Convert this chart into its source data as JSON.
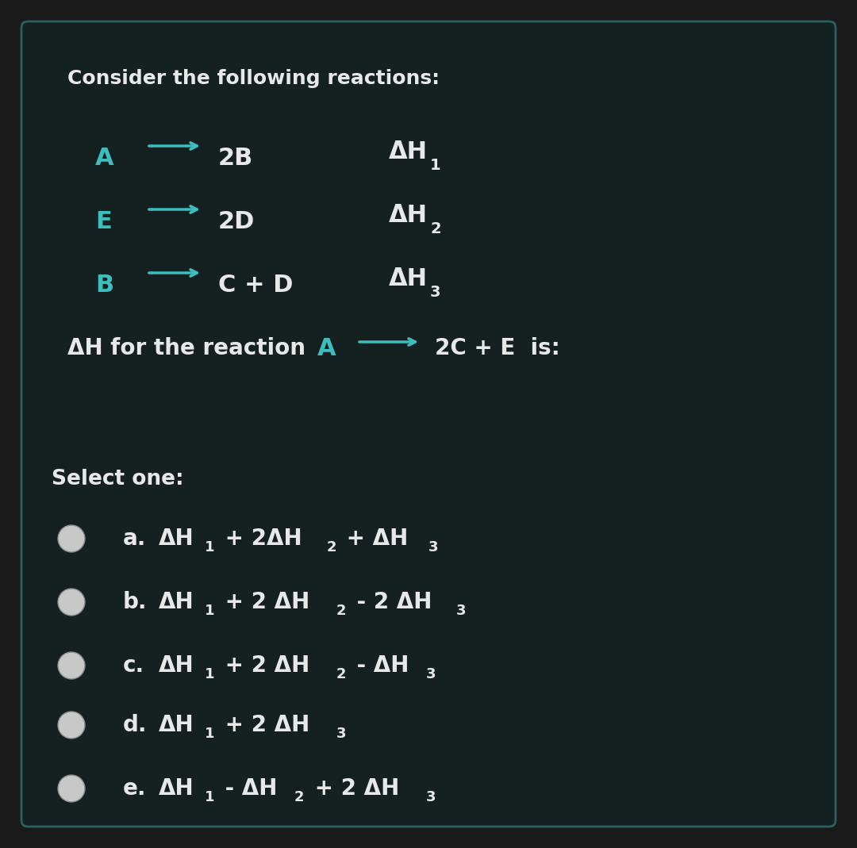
{
  "bg_outer": "#1a1a1a",
  "bg_card": "#152020",
  "card_border": "#2a6060",
  "text_color": "#e8e8e8",
  "teal_color": "#3dbdbd",
  "arrow_color": "#3dbdbd",
  "title": "Consider the following reactions:",
  "reactions": [
    {
      "left": "A",
      "right": "2B",
      "dh_main": "ΔH",
      "dh_sub": "1"
    },
    {
      "left": "E",
      "right": "2D",
      "dh_main": "ΔH",
      "dh_sub": "2"
    },
    {
      "left": "B",
      "right": "C + D",
      "dh_main": "ΔH",
      "dh_sub": "3"
    }
  ],
  "q_left": "ΔH for the reaction",
  "q_mid": "A",
  "q_right": "2C + E  is:",
  "select_one": "Select one:",
  "options": [
    {
      "label": "a.",
      "parts": [
        "ΔH",
        "1",
        " + 2ΔH",
        "2",
        " + ΔH",
        "3",
        ""
      ]
    },
    {
      "label": "b.",
      "parts": [
        "ΔH",
        "1",
        " + 2 ΔH",
        "2",
        " - 2 ΔH",
        "3",
        ""
      ]
    },
    {
      "label": "c.",
      "parts": [
        "ΔH",
        "1",
        " + 2 ΔH",
        "2",
        " - ΔH",
        "3",
        ""
      ]
    },
    {
      "label": "d.",
      "parts": [
        "ΔH",
        "1",
        " + 2 ΔH",
        "3",
        "",
        "",
        ""
      ]
    },
    {
      "label": "e.",
      "parts": [
        "ΔH",
        "1",
        " - ΔH",
        "2",
        " + 2 ΔH",
        "3",
        ""
      ]
    }
  ],
  "circle_fill": "#c8c8c8",
  "circle_edge": "#888888",
  "figsize": [
    10.8,
    10.69
  ],
  "dpi": 100
}
